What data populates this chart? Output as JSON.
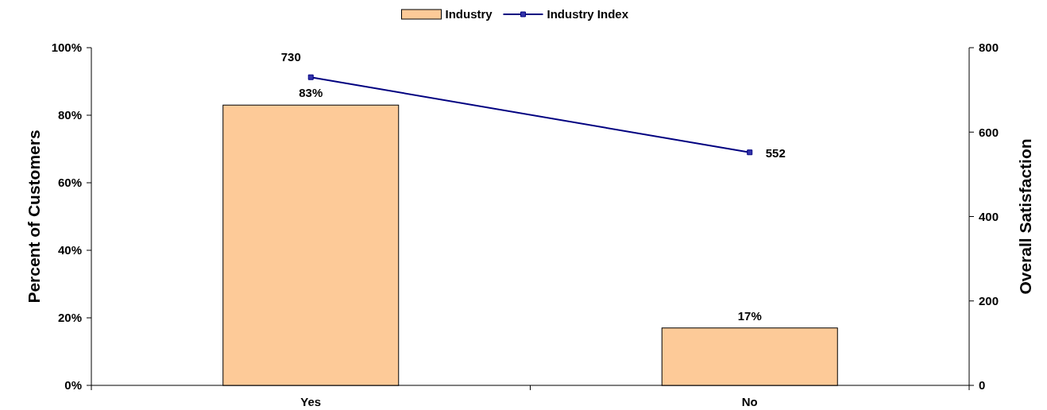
{
  "chart_data": {
    "type": "bar",
    "categories": [
      "Yes",
      "No"
    ],
    "ylabel": "Percent of Customers",
    "y2label": "Overall Satisfaction",
    "ylim": [
      0,
      100
    ],
    "yticks": [
      {
        "value": 0,
        "label": "0%"
      },
      {
        "value": 20,
        "label": "20%"
      },
      {
        "value": 40,
        "label": "40%"
      },
      {
        "value": 60,
        "label": "60%"
      },
      {
        "value": 80,
        "label": "80%"
      },
      {
        "value": 100,
        "label": "100%"
      }
    ],
    "y2lim": [
      0,
      800
    ],
    "y2ticks": [
      0,
      200,
      400,
      600,
      800
    ],
    "legend": "top",
    "marker": "square",
    "series": [
      {
        "name": "Industry",
        "color": "#fdca98",
        "values": [
          83,
          17
        ],
        "value_labels": [
          "83%",
          "17%"
        ]
      },
      {
        "name": "Industry Index",
        "type": "line",
        "axis": "y2",
        "color": "#000080",
        "values": [
          730,
          552
        ],
        "value_labels": [
          "730",
          "552"
        ]
      }
    ]
  }
}
